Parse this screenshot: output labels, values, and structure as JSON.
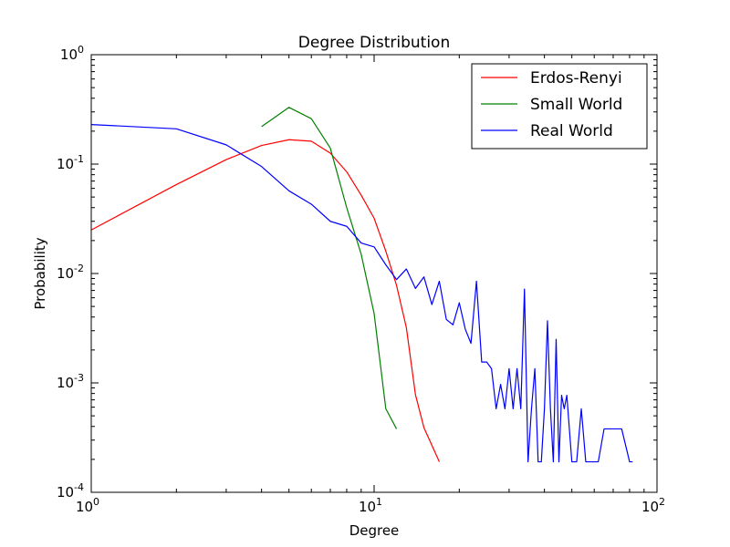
{
  "chart_data": {
    "type": "line",
    "title": "Degree Distribution",
    "xlabel": "Degree",
    "ylabel": "Probability",
    "xscale": "log",
    "yscale": "log",
    "xlim": [
      1,
      100
    ],
    "ylim": [
      0.0001,
      1
    ],
    "grid": false,
    "legend_position": "top-right",
    "x_ticks": [
      {
        "value": 1,
        "base": "10",
        "exp": "0"
      },
      {
        "value": 10,
        "base": "10",
        "exp": "1"
      },
      {
        "value": 100,
        "base": "10",
        "exp": "2"
      }
    ],
    "y_ticks": [
      {
        "value": 0.0001,
        "base": "10",
        "exp": "-4"
      },
      {
        "value": 0.001,
        "base": "10",
        "exp": "-3"
      },
      {
        "value": 0.01,
        "base": "10",
        "exp": "-2"
      },
      {
        "value": 0.1,
        "base": "10",
        "exp": "-1"
      },
      {
        "value": 1,
        "base": "10",
        "exp": "0"
      }
    ],
    "series": [
      {
        "name": "Erdos-Renyi",
        "color": "#ff0000",
        "x": [
          1,
          2,
          3,
          4,
          5,
          6,
          7,
          8,
          9,
          10,
          11,
          12,
          13,
          14,
          15,
          17
        ],
        "y": [
          0.025,
          0.065,
          0.11,
          0.148,
          0.167,
          0.162,
          0.126,
          0.085,
          0.052,
          0.032,
          0.016,
          0.0078,
          0.0032,
          0.00078,
          0.00039,
          0.00019
        ]
      },
      {
        "name": "Small World",
        "color": "#008000",
        "x": [
          4,
          5,
          6,
          7,
          8,
          9,
          10,
          11,
          12
        ],
        "y": [
          0.22,
          0.33,
          0.26,
          0.14,
          0.04,
          0.015,
          0.0043,
          0.00058,
          0.00038
        ]
      },
      {
        "name": "Real World",
        "color": "#0000ff",
        "x": [
          1,
          2,
          3,
          4,
          5,
          6,
          7,
          8,
          9,
          10,
          11,
          12,
          13,
          14,
          15,
          16,
          17,
          18,
          19,
          20,
          21,
          22,
          23,
          24,
          25,
          26,
          27,
          28,
          29,
          30,
          31,
          32,
          33,
          34,
          35,
          36,
          37,
          38,
          39,
          40,
          41,
          42,
          43,
          44,
          45,
          46,
          47,
          48,
          49,
          50,
          52,
          54,
          56,
          58,
          60,
          62,
          65,
          70,
          75,
          80,
          82
        ],
        "y": [
          0.23,
          0.21,
          0.15,
          0.095,
          0.057,
          0.043,
          0.03,
          0.027,
          0.019,
          0.0175,
          0.012,
          0.0088,
          0.011,
          0.0073,
          0.0093,
          0.0052,
          0.0085,
          0.0038,
          0.0034,
          0.0054,
          0.0031,
          0.0023,
          0.0085,
          0.00155,
          0.00155,
          0.00135,
          0.00058,
          0.00097,
          0.00058,
          0.00135,
          0.00058,
          0.00135,
          0.00058,
          0.0072,
          0.00019,
          0.00058,
          0.00135,
          0.00019,
          0.00019,
          0.00058,
          0.0037,
          0.00058,
          0.00019,
          0.0025,
          0.00019,
          0.00077,
          0.00058,
          0.00077,
          0.00038,
          0.00019,
          0.00019,
          0.00058,
          0.00019,
          0.00019,
          0.00019,
          0.00019,
          0.00038,
          0.00038,
          0.00038,
          0.00019,
          0.00019
        ]
      }
    ]
  }
}
